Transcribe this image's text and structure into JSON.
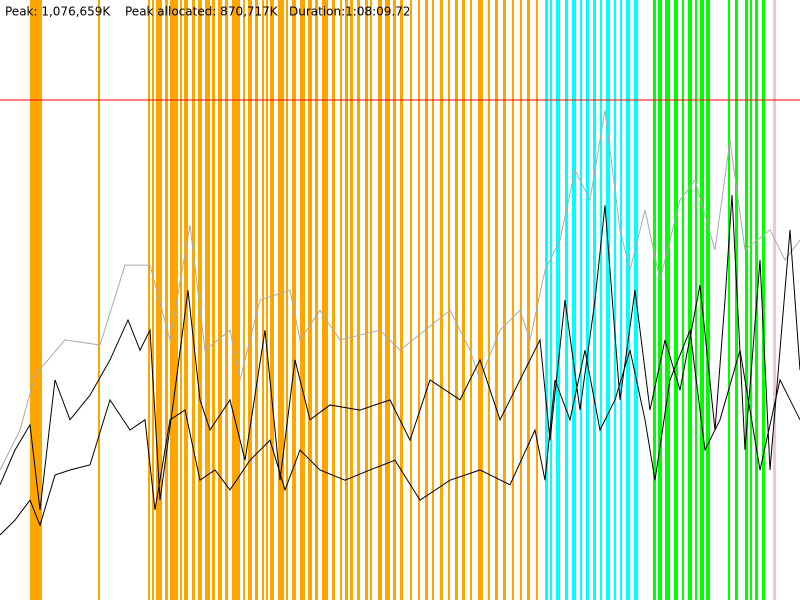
{
  "chart_data": {
    "type": "memory-timeline",
    "annotations": [
      "Peak: 1,076,659K",
      "Peak allocated: 870,717K",
      "Duration:1:08:09.72"
    ],
    "xlim": [
      0,
      800
    ],
    "ylim": [
      0,
      1292000
    ],
    "peak_line": {
      "value": 1076659,
      "color": "#ff0000"
    },
    "events": [
      {
        "color": "#ffa500",
        "ranges": [
          [
            30,
            42
          ],
          [
            98,
            100
          ],
          [
            148,
            150
          ],
          [
            152,
            154
          ],
          [
            156,
            162
          ],
          [
            165,
            168
          ],
          [
            170,
            178
          ],
          [
            180,
            182
          ],
          [
            184,
            188
          ],
          [
            192,
            195
          ],
          [
            198,
            202
          ],
          [
            205,
            210
          ],
          [
            212,
            215
          ],
          [
            218,
            222
          ],
          [
            225,
            228
          ],
          [
            232,
            240
          ],
          [
            243,
            245
          ],
          [
            248,
            252
          ],
          [
            255,
            258
          ],
          [
            262,
            264
          ],
          [
            266,
            268
          ],
          [
            270,
            274
          ],
          [
            278,
            284
          ],
          [
            286,
            288
          ],
          [
            292,
            296
          ],
          [
            300,
            305
          ],
          [
            308,
            312
          ],
          [
            315,
            318
          ],
          [
            322,
            328
          ],
          [
            332,
            335
          ],
          [
            340,
            342
          ],
          [
            345,
            348
          ],
          [
            350,
            353
          ],
          [
            357,
            360
          ],
          [
            365,
            368
          ],
          [
            370,
            372
          ],
          [
            378,
            382
          ],
          [
            385,
            390
          ],
          [
            393,
            396
          ],
          [
            400,
            403
          ],
          [
            410,
            412
          ],
          [
            418,
            420
          ],
          [
            425,
            428
          ],
          [
            432,
            434
          ],
          [
            440,
            443
          ],
          [
            448,
            450
          ],
          [
            455,
            458
          ],
          [
            462,
            465
          ],
          [
            470,
            472
          ],
          [
            478,
            483
          ],
          [
            488,
            490
          ],
          [
            495,
            498
          ],
          [
            503,
            506
          ],
          [
            512,
            514
          ],
          [
            520,
            522
          ],
          [
            527,
            530
          ],
          [
            536,
            538
          ]
        ]
      },
      {
        "color": "#00ffff",
        "ranges": [
          [
            545,
            548
          ],
          [
            550,
            552
          ],
          [
            556,
            560
          ],
          [
            565,
            568
          ],
          [
            572,
            576
          ],
          [
            580,
            582
          ],
          [
            586,
            589
          ],
          [
            593,
            596
          ],
          [
            600,
            602
          ],
          [
            606,
            610
          ],
          [
            614,
            616
          ],
          [
            620,
            622
          ],
          [
            626,
            630
          ],
          [
            634,
            638
          ]
        ]
      },
      {
        "color": "#00ff00",
        "ranges": [
          [
            653,
            656
          ],
          [
            658,
            662
          ],
          [
            665,
            670
          ],
          [
            674,
            678
          ],
          [
            682,
            684
          ],
          [
            688,
            692
          ],
          [
            695,
            697
          ],
          [
            700,
            704
          ],
          [
            706,
            710
          ],
          [
            728,
            730
          ],
          [
            735,
            738
          ],
          [
            745,
            748
          ],
          [
            750,
            752
          ],
          [
            755,
            758
          ],
          [
            762,
            765
          ]
        ]
      },
      {
        "color": "#ffc0cb",
        "ranges": [
          [
            773,
            776
          ]
        ]
      }
    ],
    "series": [
      {
        "color": "#aaaaaa",
        "x": [
          0,
          20,
          35,
          65,
          100,
          125,
          150,
          170,
          190,
          205,
          230,
          240,
          260,
          290,
          300,
          320,
          340,
          380,
          400,
          450,
          470,
          480,
          500,
          520,
          530,
          545,
          560,
          575,
          590,
          605,
          620,
          630,
          645,
          660,
          680,
          695,
          715,
          730,
          745,
          770,
          785,
          800
        ],
        "values": [
          280000,
          366000,
          484000,
          560000,
          549000,
          721000,
          721000,
          560000,
          807000,
          538000,
          581000,
          474000,
          646000,
          667000,
          560000,
          624000,
          560000,
          581000,
          538000,
          624000,
          538000,
          474000,
          581000,
          624000,
          560000,
          710000,
          775000,
          926000,
          861000,
          1055000,
          797000,
          710000,
          840000,
          689000,
          861000,
          904000,
          754000,
          990000,
          754000,
          797000,
          732000,
          775000
        ]
      },
      {
        "color": "#000000",
        "x": [
          0,
          15,
          30,
          40,
          55,
          70,
          90,
          110,
          128,
          140,
          150,
          160,
          175,
          188,
          200,
          210,
          230,
          245,
          265,
          280,
          295,
          310,
          330,
          360,
          390,
          410,
          430,
          460,
          480,
          500,
          520,
          540,
          550,
          565,
          580,
          595,
          605,
          620,
          635,
          650,
          665,
          680,
          700,
          715,
          725,
          732,
          745,
          760,
          770,
          790,
          800
        ],
        "values": [
          248000,
          323000,
          377000,
          194000,
          474000,
          388000,
          441000,
          517000,
          603000,
          538000,
          581000,
          215000,
          452000,
          667000,
          431000,
          366000,
          431000,
          301000,
          581000,
          258000,
          517000,
          388000,
          420000,
          409000,
          431000,
          344000,
          474000,
          431000,
          517000,
          388000,
          474000,
          560000,
          344000,
          646000,
          409000,
          646000,
          850000,
          431000,
          667000,
          409000,
          560000,
          452000,
          678000,
          366000,
          646000,
          872000,
          323000,
          732000,
          280000,
          797000,
          495000
        ]
      },
      {
        "color": "#000000",
        "x": [
          0,
          15,
          30,
          40,
          55,
          70,
          90,
          110,
          130,
          145,
          155,
          170,
          185,
          200,
          215,
          230,
          250,
          270,
          285,
          300,
          320,
          345,
          370,
          395,
          420,
          450,
          480,
          510,
          535,
          545,
          555,
          570,
          585,
          600,
          615,
          630,
          645,
          655,
          670,
          690,
          705,
          720,
          740,
          760,
          780,
          800
        ],
        "values": [
          140000,
          172000,
          215000,
          161000,
          269000,
          280000,
          291000,
          431000,
          366000,
          388000,
          194000,
          388000,
          409000,
          258000,
          280000,
          237000,
          301000,
          344000,
          237000,
          323000,
          280000,
          258000,
          280000,
          301000,
          215000,
          258000,
          280000,
          248000,
          366000,
          258000,
          474000,
          388000,
          538000,
          366000,
          431000,
          538000,
          388000,
          258000,
          474000,
          581000,
          323000,
          388000,
          538000,
          280000,
          474000,
          388000
        ]
      }
    ]
  }
}
